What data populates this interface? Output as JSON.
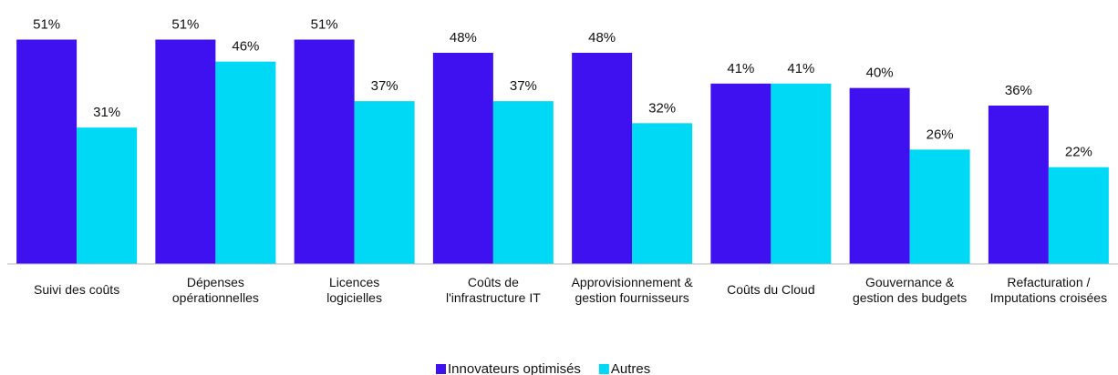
{
  "chart_data": {
    "type": "bar",
    "categories": [
      "Suivi des coûts",
      "Dépenses\nopérationnelles",
      "Licences\nlogicielles",
      "Coûts de\nl'infrastructure IT",
      "Approvisionnement &\ngestion fournisseurs",
      "Coûts du Cloud",
      "Gouvernance &\ngestion des budgets",
      "Refacturation /\nImputations croisées"
    ],
    "series": [
      {
        "name": "Innovateurs optimisés",
        "color": "#3f10f0",
        "values": [
          51,
          51,
          51,
          48,
          48,
          41,
          40,
          36
        ],
        "value_labels": [
          "51%",
          "51%",
          "51%",
          "48%",
          "48%",
          "41%",
          "40%",
          "36%"
        ]
      },
      {
        "name": "Autres",
        "color": "#00d9f5",
        "values": [
          31,
          46,
          37,
          37,
          32,
          41,
          26,
          22
        ],
        "value_labels": [
          "31%",
          "46%",
          "37%",
          "37%",
          "32%",
          "41%",
          "26%",
          "22%"
        ]
      }
    ],
    "ylim": [
      0,
      60
    ],
    "legend": "bottom"
  }
}
